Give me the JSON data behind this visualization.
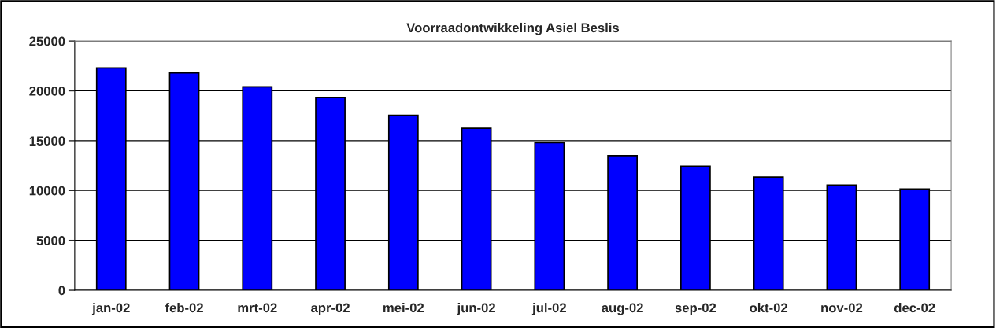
{
  "chart_data": {
    "type": "bar",
    "title": "Voorraadontwikkeling Asiel Beslis",
    "categories": [
      "jan-02",
      "feb-02",
      "mrt-02",
      "apr-02",
      "mei-02",
      "jun-02",
      "jul-02",
      "aug-02",
      "sep-02",
      "okt-02",
      "nov-02",
      "dec-02"
    ],
    "values": [
      22300,
      21800,
      20400,
      19350,
      17550,
      16250,
      14800,
      13500,
      12450,
      11350,
      10550,
      10150
    ],
    "color": "#0000ff",
    "ylim": [
      0,
      25000
    ],
    "yticks": [
      0,
      5000,
      10000,
      15000,
      20000,
      25000
    ],
    "grid": "y"
  }
}
